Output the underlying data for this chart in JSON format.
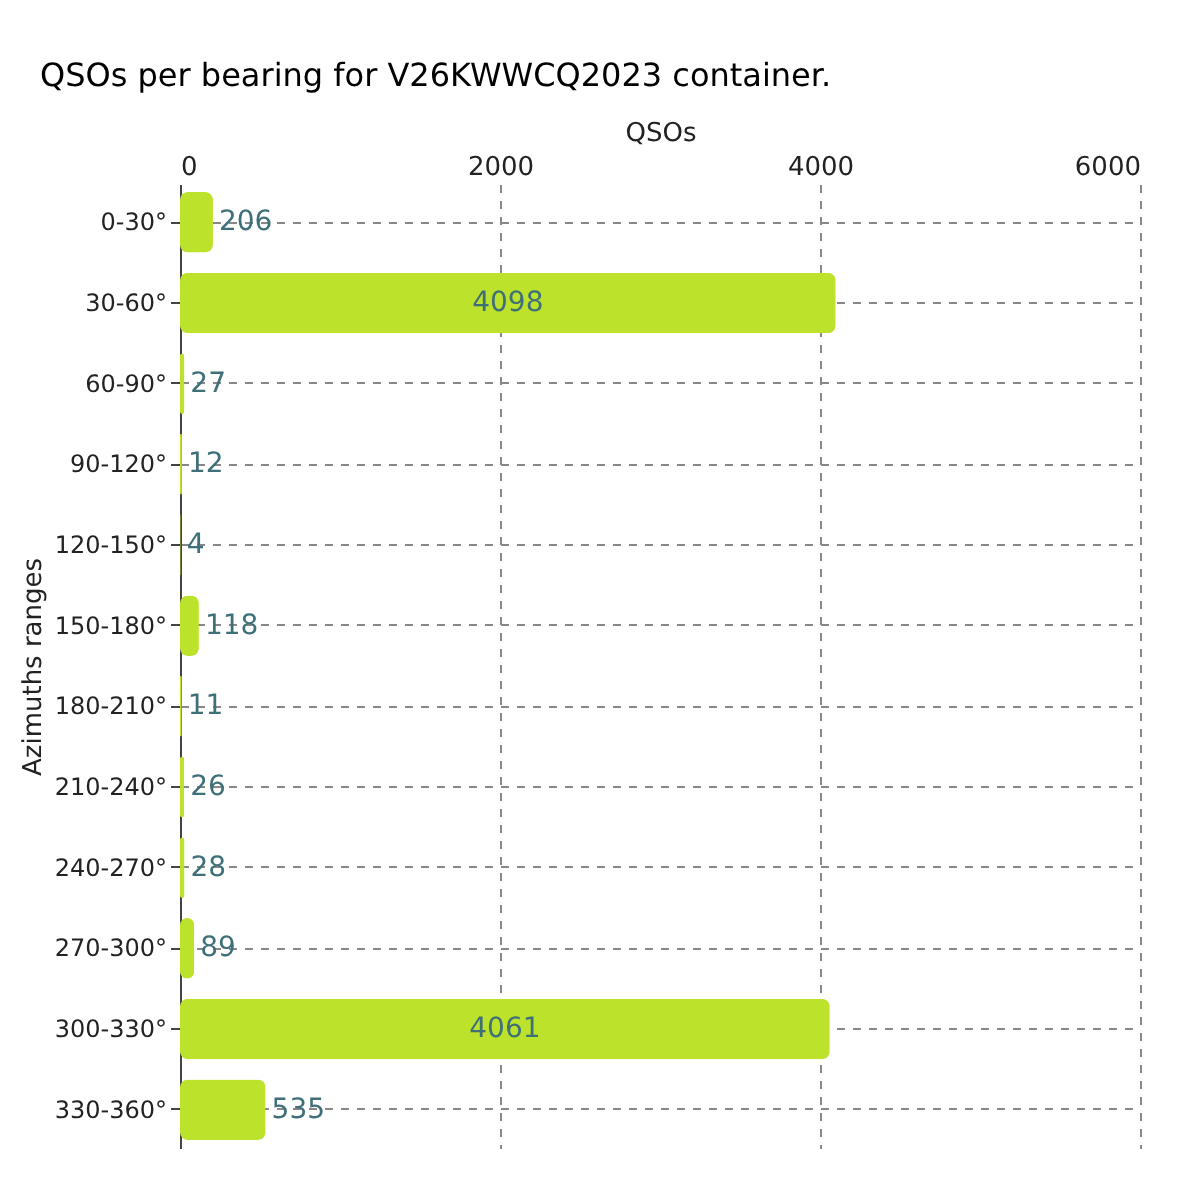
{
  "chart_data": {
    "type": "bar",
    "orientation": "horizontal",
    "title": "QSOs per bearing for V26KWWCQ2023 container.",
    "xlabel": "QSOs",
    "ylabel": "Azimuths ranges",
    "categories": [
      "0-30°",
      "30-60°",
      "60-90°",
      "90-120°",
      "120-150°",
      "150-180°",
      "180-210°",
      "210-240°",
      "240-270°",
      "270-300°",
      "300-330°",
      "330-360°"
    ],
    "values": [
      206,
      4098,
      27,
      12,
      4,
      118,
      11,
      26,
      28,
      89,
      4061,
      535
    ],
    "color": "#bde22b",
    "xlim": [
      0,
      6000
    ],
    "xticks": [
      0,
      2000,
      4000,
      6000
    ],
    "grid": true,
    "data_labels": true
  }
}
